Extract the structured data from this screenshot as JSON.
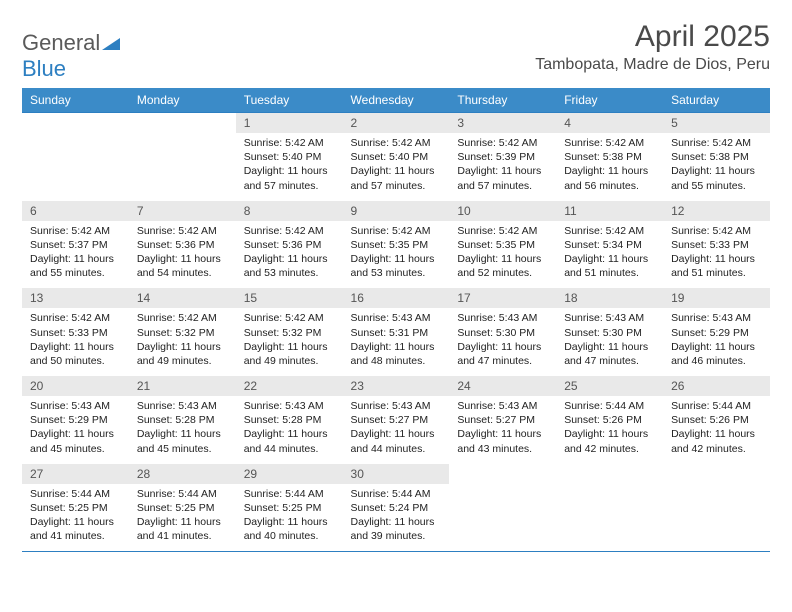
{
  "brand": {
    "general": "General",
    "blue": "Blue"
  },
  "title": "April 2025",
  "location": "Tambopata, Madre de Dios, Peru",
  "colors": {
    "header_bg": "#3b8bc8",
    "header_text": "#ffffff",
    "daynum_bg": "#e9e9e9",
    "accent_line": "#2d7fc1",
    "text": "#222222",
    "title_text": "#4a4a4a"
  },
  "day_headers": [
    "Sunday",
    "Monday",
    "Tuesday",
    "Wednesday",
    "Thursday",
    "Friday",
    "Saturday"
  ],
  "weeks": [
    {
      "nums": [
        "",
        "",
        "1",
        "2",
        "3",
        "4",
        "5"
      ],
      "cells": [
        null,
        null,
        {
          "sunrise": "Sunrise: 5:42 AM",
          "sunset": "Sunset: 5:40 PM",
          "daylight": "Daylight: 11 hours and 57 minutes."
        },
        {
          "sunrise": "Sunrise: 5:42 AM",
          "sunset": "Sunset: 5:40 PM",
          "daylight": "Daylight: 11 hours and 57 minutes."
        },
        {
          "sunrise": "Sunrise: 5:42 AM",
          "sunset": "Sunset: 5:39 PM",
          "daylight": "Daylight: 11 hours and 57 minutes."
        },
        {
          "sunrise": "Sunrise: 5:42 AM",
          "sunset": "Sunset: 5:38 PM",
          "daylight": "Daylight: 11 hours and 56 minutes."
        },
        {
          "sunrise": "Sunrise: 5:42 AM",
          "sunset": "Sunset: 5:38 PM",
          "daylight": "Daylight: 11 hours and 55 minutes."
        }
      ]
    },
    {
      "nums": [
        "6",
        "7",
        "8",
        "9",
        "10",
        "11",
        "12"
      ],
      "cells": [
        {
          "sunrise": "Sunrise: 5:42 AM",
          "sunset": "Sunset: 5:37 PM",
          "daylight": "Daylight: 11 hours and 55 minutes."
        },
        {
          "sunrise": "Sunrise: 5:42 AM",
          "sunset": "Sunset: 5:36 PM",
          "daylight": "Daylight: 11 hours and 54 minutes."
        },
        {
          "sunrise": "Sunrise: 5:42 AM",
          "sunset": "Sunset: 5:36 PM",
          "daylight": "Daylight: 11 hours and 53 minutes."
        },
        {
          "sunrise": "Sunrise: 5:42 AM",
          "sunset": "Sunset: 5:35 PM",
          "daylight": "Daylight: 11 hours and 53 minutes."
        },
        {
          "sunrise": "Sunrise: 5:42 AM",
          "sunset": "Sunset: 5:35 PM",
          "daylight": "Daylight: 11 hours and 52 minutes."
        },
        {
          "sunrise": "Sunrise: 5:42 AM",
          "sunset": "Sunset: 5:34 PM",
          "daylight": "Daylight: 11 hours and 51 minutes."
        },
        {
          "sunrise": "Sunrise: 5:42 AM",
          "sunset": "Sunset: 5:33 PM",
          "daylight": "Daylight: 11 hours and 51 minutes."
        }
      ]
    },
    {
      "nums": [
        "13",
        "14",
        "15",
        "16",
        "17",
        "18",
        "19"
      ],
      "cells": [
        {
          "sunrise": "Sunrise: 5:42 AM",
          "sunset": "Sunset: 5:33 PM",
          "daylight": "Daylight: 11 hours and 50 minutes."
        },
        {
          "sunrise": "Sunrise: 5:42 AM",
          "sunset": "Sunset: 5:32 PM",
          "daylight": "Daylight: 11 hours and 49 minutes."
        },
        {
          "sunrise": "Sunrise: 5:42 AM",
          "sunset": "Sunset: 5:32 PM",
          "daylight": "Daylight: 11 hours and 49 minutes."
        },
        {
          "sunrise": "Sunrise: 5:43 AM",
          "sunset": "Sunset: 5:31 PM",
          "daylight": "Daylight: 11 hours and 48 minutes."
        },
        {
          "sunrise": "Sunrise: 5:43 AM",
          "sunset": "Sunset: 5:30 PM",
          "daylight": "Daylight: 11 hours and 47 minutes."
        },
        {
          "sunrise": "Sunrise: 5:43 AM",
          "sunset": "Sunset: 5:30 PM",
          "daylight": "Daylight: 11 hours and 47 minutes."
        },
        {
          "sunrise": "Sunrise: 5:43 AM",
          "sunset": "Sunset: 5:29 PM",
          "daylight": "Daylight: 11 hours and 46 minutes."
        }
      ]
    },
    {
      "nums": [
        "20",
        "21",
        "22",
        "23",
        "24",
        "25",
        "26"
      ],
      "cells": [
        {
          "sunrise": "Sunrise: 5:43 AM",
          "sunset": "Sunset: 5:29 PM",
          "daylight": "Daylight: 11 hours and 45 minutes."
        },
        {
          "sunrise": "Sunrise: 5:43 AM",
          "sunset": "Sunset: 5:28 PM",
          "daylight": "Daylight: 11 hours and 45 minutes."
        },
        {
          "sunrise": "Sunrise: 5:43 AM",
          "sunset": "Sunset: 5:28 PM",
          "daylight": "Daylight: 11 hours and 44 minutes."
        },
        {
          "sunrise": "Sunrise: 5:43 AM",
          "sunset": "Sunset: 5:27 PM",
          "daylight": "Daylight: 11 hours and 44 minutes."
        },
        {
          "sunrise": "Sunrise: 5:43 AM",
          "sunset": "Sunset: 5:27 PM",
          "daylight": "Daylight: 11 hours and 43 minutes."
        },
        {
          "sunrise": "Sunrise: 5:44 AM",
          "sunset": "Sunset: 5:26 PM",
          "daylight": "Daylight: 11 hours and 42 minutes."
        },
        {
          "sunrise": "Sunrise: 5:44 AM",
          "sunset": "Sunset: 5:26 PM",
          "daylight": "Daylight: 11 hours and 42 minutes."
        }
      ]
    },
    {
      "nums": [
        "27",
        "28",
        "29",
        "30",
        "",
        "",
        ""
      ],
      "cells": [
        {
          "sunrise": "Sunrise: 5:44 AM",
          "sunset": "Sunset: 5:25 PM",
          "daylight": "Daylight: 11 hours and 41 minutes."
        },
        {
          "sunrise": "Sunrise: 5:44 AM",
          "sunset": "Sunset: 5:25 PM",
          "daylight": "Daylight: 11 hours and 41 minutes."
        },
        {
          "sunrise": "Sunrise: 5:44 AM",
          "sunset": "Sunset: 5:25 PM",
          "daylight": "Daylight: 11 hours and 40 minutes."
        },
        {
          "sunrise": "Sunrise: 5:44 AM",
          "sunset": "Sunset: 5:24 PM",
          "daylight": "Daylight: 11 hours and 39 minutes."
        },
        null,
        null,
        null
      ]
    }
  ]
}
